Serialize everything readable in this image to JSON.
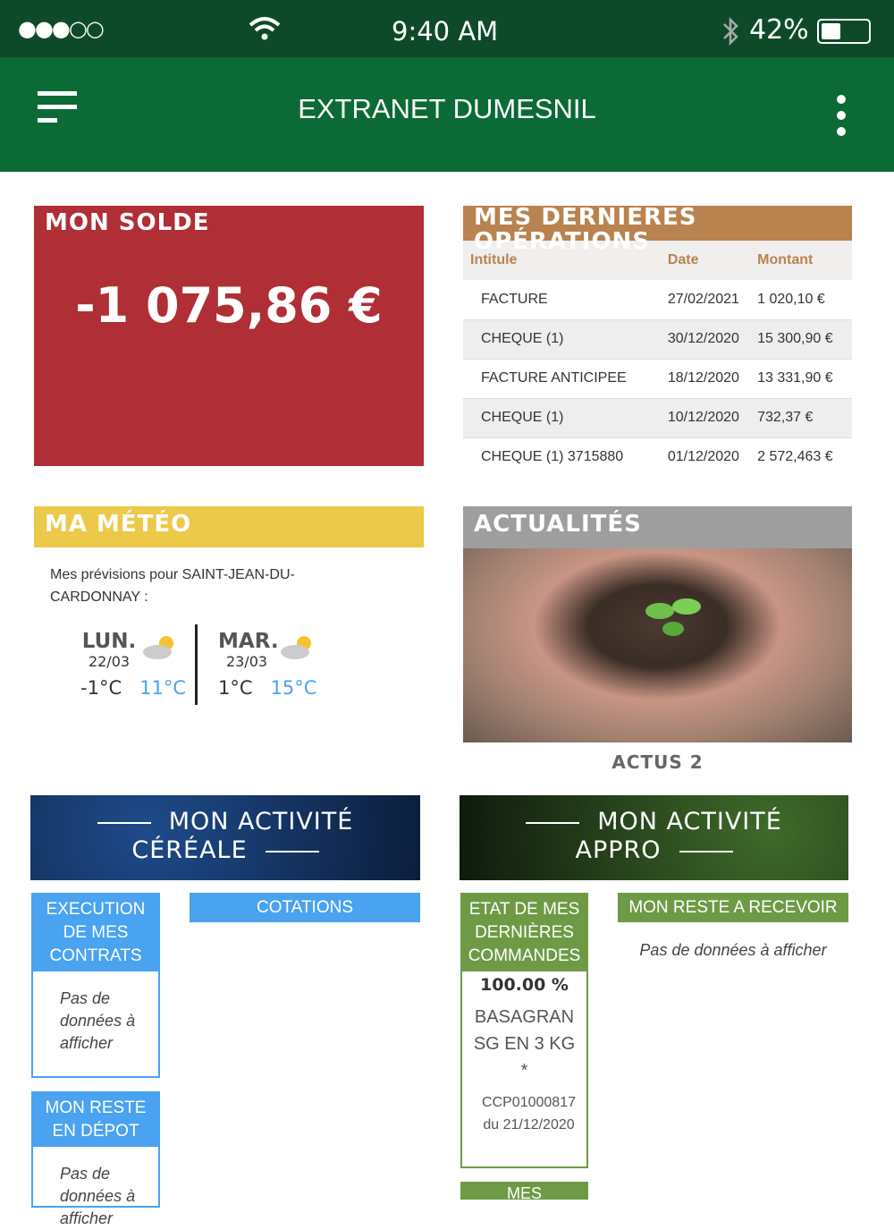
{
  "status": {
    "signal": "●●●○○",
    "time": "9:40 AM",
    "battery": "42%",
    "battery_level": 0.42
  },
  "header": {
    "title": "EXTRANET DUMESNIL"
  },
  "solde": {
    "title": "MON SOLDE",
    "value": "-1 075,86 €"
  },
  "operations": {
    "title": "MES DERNIÈRES OPÉRATIONS",
    "columns": [
      "Intitule",
      "Date",
      "Montant"
    ],
    "rows": [
      [
        "FACTURE",
        "27/02/2021",
        "1 020,10 €"
      ],
      [
        "CHEQUE (1)",
        "30/12/2020",
        "15 300,90 €"
      ],
      [
        "FACTURE ANTICIPEE",
        "18/12/2020",
        "13 331,90 €"
      ],
      [
        "CHEQUE (1)",
        "10/12/2020",
        "732,37 €"
      ],
      [
        "CHEQUE (1) 3715880",
        "01/12/2020",
        "2 572,463 €"
      ]
    ]
  },
  "meteo": {
    "title": "MA MÉTÉO",
    "intro": "Mes prévisions pour SAINT-JEAN-DU-CARDONNAY :",
    "days": [
      {
        "day": "LUN.",
        "date": "22/03",
        "min": "-1°C",
        "max": "11°C",
        "icon": "partly-cloudy-icon"
      },
      {
        "day": "MAR.",
        "date": "23/03",
        "min": "1°C",
        "max": "15°C",
        "icon": "partly-cloudy-icon"
      }
    ]
  },
  "actus": {
    "title": "ACTUALITÉS",
    "caption": "ACTUS 2"
  },
  "cereale": {
    "banner1": "MON ACTIVITÉ",
    "banner2": "CÉRÉALE",
    "execution": "EXECUTION DE MES CONTRATS",
    "execution_empty": "Pas de données à afficher",
    "cotations": "COTATIONS",
    "depot": "MON RESTE EN DÉPOT",
    "depot_empty": "Pas de données à afficher"
  },
  "appro": {
    "banner1": "MON ACTIVITÉ",
    "banner2": "APPRO",
    "commandes": "ETAT DE MES DERNIÈRES COMMANDES",
    "percent": "100.00 %",
    "product": "BASAGRAN SG EN 3 KG *",
    "order": "CCP01000817 du 21/12/2020",
    "recevoir": "MON RESTE A RECEVOIR",
    "recevoir_empty": "Pas de données à afficher",
    "next": "MES"
  },
  "colors": {
    "primary": "#0b6a36",
    "solde": "#b02e35",
    "operations": "#b8834f",
    "meteo": "#edc94a",
    "actus": "#9e9e9e",
    "cereale": "#4aa3f0",
    "appro": "#6e9a46"
  }
}
